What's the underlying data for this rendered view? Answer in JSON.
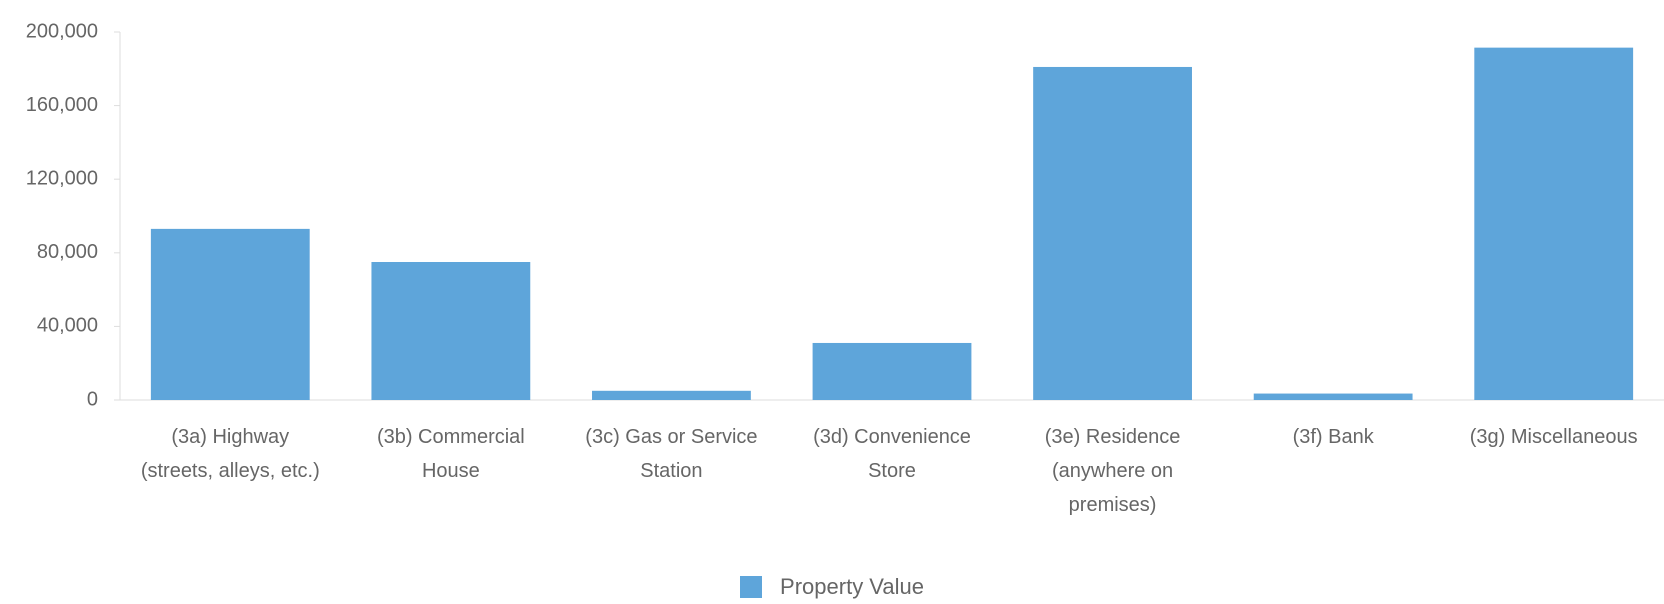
{
  "chart_data": {
    "type": "bar",
    "categories": [
      "(3a) Highway (streets, alleys, etc.)",
      "(3b) Commercial House",
      "(3c) Gas or Service Station",
      "(3d) Convenience Store",
      "(3e) Residence (anywhere on premises)",
      "(3f) Bank",
      "(3g) Miscellaneous"
    ],
    "series": [
      {
        "name": "Property Value",
        "color": "#5ea5da",
        "values": [
          93000,
          75000,
          5000,
          31000,
          181000,
          3500,
          191500
        ]
      }
    ],
    "ylim": [
      0,
      200000
    ],
    "yticks": [
      {
        "value": 0,
        "label": "0"
      },
      {
        "value": 40000,
        "label": "40,000"
      },
      {
        "value": 80000,
        "label": "80,000"
      },
      {
        "value": 120000,
        "label": "120,000"
      },
      {
        "value": 160000,
        "label": "160,000"
      },
      {
        "value": 200000,
        "label": "200,000"
      }
    ],
    "legend": "bottom"
  }
}
